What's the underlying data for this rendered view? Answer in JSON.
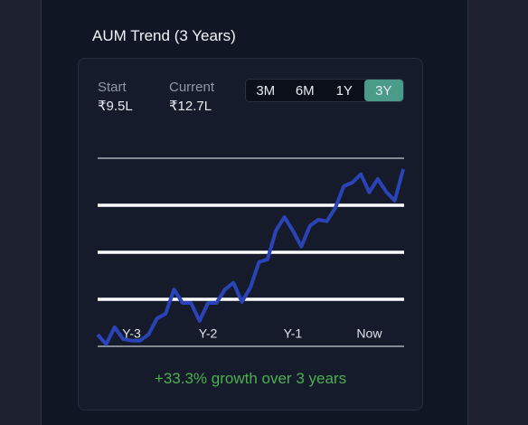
{
  "header": {
    "title": "AUM Trend (3 Years)"
  },
  "stats": [
    {
      "label": "Start",
      "value": "₹9.5L"
    },
    {
      "label": "Current",
      "value": "₹12.7L"
    }
  ],
  "ranges": {
    "options": [
      "3M",
      "6M",
      "1Y",
      "3Y"
    ],
    "active_index": 3
  },
  "chart_data": {
    "type": "line",
    "categories": [
      null,
      null,
      null,
      null,
      "Y-3",
      null,
      null,
      null,
      null,
      null,
      null,
      null,
      null,
      "Y-2",
      null,
      null,
      null,
      null,
      null,
      null,
      null,
      null,
      null,
      "Y-1",
      null,
      null,
      null,
      null,
      null,
      null,
      null,
      null,
      "Now",
      null,
      null,
      null,
      null
    ],
    "values": [
      9.5,
      9.31,
      9.64,
      9.41,
      9.38,
      9.38,
      9.5,
      9.81,
      9.9,
      10.37,
      10.11,
      10.11,
      9.76,
      10.11,
      10.11,
      10.37,
      10.5,
      10.13,
      10.41,
      10.9,
      10.95,
      11.51,
      11.77,
      11.51,
      11.2,
      11.6,
      11.72,
      11.69,
      11.95,
      12.37,
      12.44,
      12.6,
      12.25,
      12.51,
      12.26,
      12.09,
      12.7
    ],
    "color": "#2a44b8",
    "ylim": [
      9.27,
      12.91
    ],
    "yticks": [
      9.27,
      10.18,
      11.09,
      12.0,
      12.91
    ],
    "grid": true
  },
  "growth": "+33.3% growth over 3 years"
}
